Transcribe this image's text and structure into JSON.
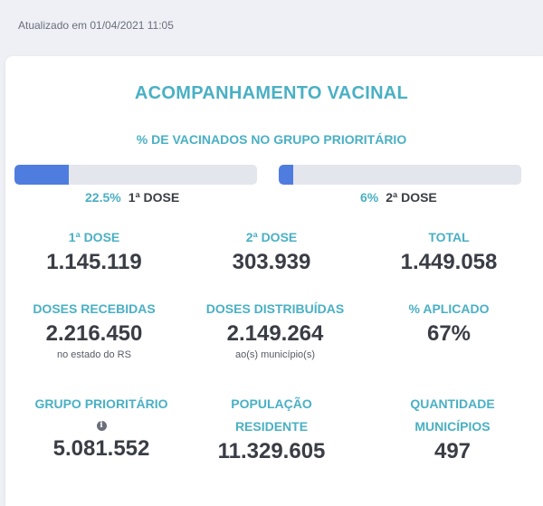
{
  "updated_text": "Atualizado em 01/04/2021 11:05",
  "title": "ACOMPANHAMENTO VACINAL",
  "subtitle": "% DE VACINADOS NO GRUPO PRIORITÁRIO",
  "progress": [
    {
      "percent_label": "22.5%",
      "dose_label": "1ª DOSE",
      "value_percent": 22.5
    },
    {
      "percent_label": "6%",
      "dose_label": "2ª DOSE",
      "value_percent": 6
    }
  ],
  "colors": {
    "accent": "#4ab0c4",
    "bar_fill": "#4f7ddf",
    "bar_track": "#e3e6ec",
    "value_text": "#3a3d45"
  },
  "stats": {
    "dose1": {
      "label": "1ª DOSE",
      "value": "1.145.119"
    },
    "dose2": {
      "label": "2ª DOSE",
      "value": "303.939"
    },
    "total": {
      "label": "TOTAL",
      "value": "1.449.058"
    },
    "received": {
      "label": "DOSES RECEBIDAS",
      "value": "2.216.450",
      "note": "no estado do RS"
    },
    "distributed": {
      "label": "DOSES DISTRIBUÍDAS",
      "value": "2.149.264",
      "note": "ao(s) município(s)"
    },
    "applied": {
      "label": "% APLICADO",
      "value": "67%"
    },
    "priority_group": {
      "label": "GRUPO PRIORITÁRIO",
      "value": "5.081.552",
      "info_icon": "info-icon"
    },
    "population": {
      "label_line1": "POPULAÇÃO",
      "label_line2": "RESIDENTE",
      "value": "11.329.605"
    },
    "municipalities": {
      "label_line1": "QUANTIDADE",
      "label_line2": "MUNICÍPIOS",
      "value": "497"
    }
  }
}
